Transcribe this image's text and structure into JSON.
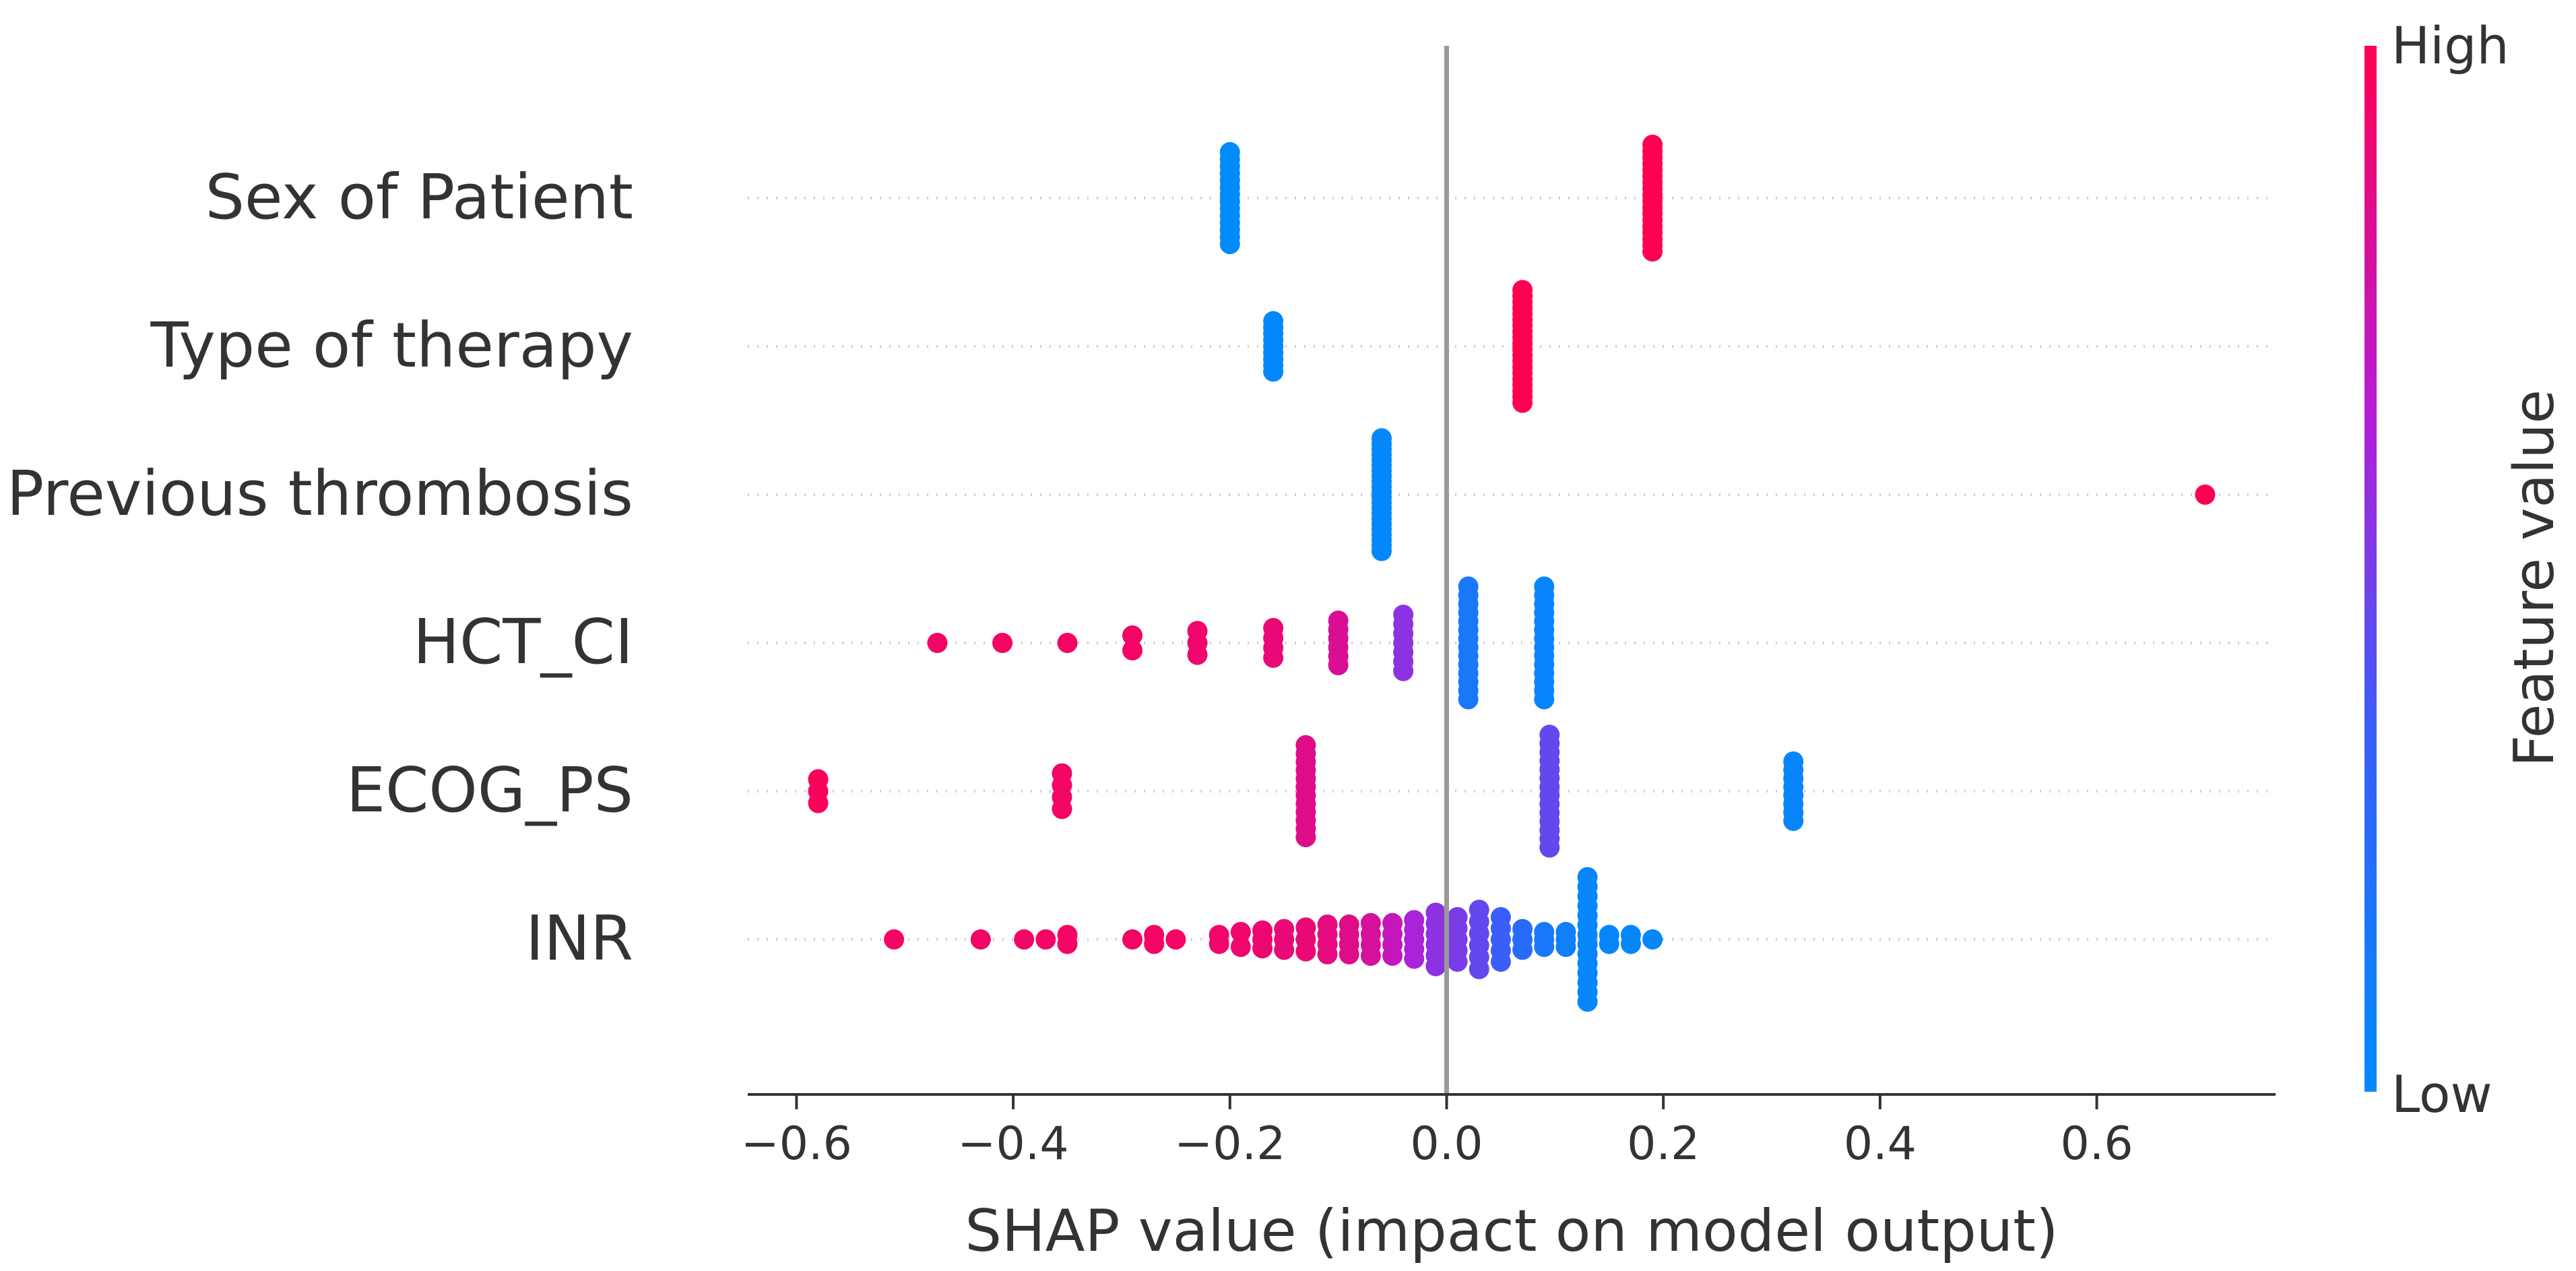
{
  "chart_data": {
    "type": "scatter",
    "subtype": "shap-beeswarm",
    "title": "",
    "xlabel": "SHAP value (impact on model output)",
    "ylabel": "",
    "xlim": [
      -0.645,
      0.765
    ],
    "xticks": [
      -0.6,
      -0.4,
      -0.2,
      0.0,
      0.2,
      0.4,
      0.6
    ],
    "xtick_labels": [
      "−0.6",
      "−0.4",
      "−0.2",
      "0.0",
      "0.2",
      "0.4",
      "0.6"
    ],
    "grid": false,
    "colorbar": {
      "label": "Feature value",
      "high_label": "High",
      "low_label": "Low",
      "high_color": "#ff0051",
      "low_color": "#008bfb"
    },
    "features": [
      {
        "name": "Sex of Patient",
        "groups": [
          {
            "x": -0.2,
            "t": 0.0,
            "n": 14,
            "spread": 0.62
          },
          {
            "x": 0.19,
            "t": 1.0,
            "n": 18,
            "spread": 0.72
          }
        ]
      },
      {
        "name": "Type of therapy",
        "groups": [
          {
            "x": -0.16,
            "t": 0.02,
            "n": 9,
            "spread": 0.34
          },
          {
            "x": 0.07,
            "t": 1.0,
            "n": 20,
            "spread": 0.76
          }
        ]
      },
      {
        "name": "Previous thrombosis",
        "groups": [
          {
            "x": -0.06,
            "t": 0.02,
            "n": 22,
            "spread": 0.76
          },
          {
            "x": 0.7,
            "t": 1.0,
            "n": 1,
            "spread": 0.0
          }
        ]
      },
      {
        "name": "HCT_CI",
        "groups": [
          {
            "x": -0.47,
            "t": 0.95,
            "n": 1,
            "spread": 0.0
          },
          {
            "x": -0.41,
            "t": 0.95,
            "n": 1,
            "spread": 0.0
          },
          {
            "x": -0.35,
            "t": 0.95,
            "n": 1,
            "spread": 0.0
          },
          {
            "x": -0.29,
            "t": 0.95,
            "n": 2,
            "spread": 0.1
          },
          {
            "x": -0.23,
            "t": 0.93,
            "n": 3,
            "spread": 0.16
          },
          {
            "x": -0.16,
            "t": 0.9,
            "n": 4,
            "spread": 0.2
          },
          {
            "x": -0.1,
            "t": 0.82,
            "n": 6,
            "spread": 0.3
          },
          {
            "x": -0.04,
            "t": 0.55,
            "n": 7,
            "spread": 0.38
          },
          {
            "x": 0.02,
            "t": 0.15,
            "n": 14,
            "spread": 0.76
          },
          {
            "x": 0.09,
            "t": 0.05,
            "n": 14,
            "spread": 0.76
          }
        ]
      },
      {
        "name": "ECOG_PS",
        "groups": [
          {
            "x": -0.58,
            "t": 0.97,
            "n": 3,
            "spread": 0.16
          },
          {
            "x": -0.355,
            "t": 0.95,
            "n": 4,
            "spread": 0.24
          },
          {
            "x": -0.13,
            "t": 0.85,
            "n": 12,
            "spread": 0.62
          },
          {
            "x": 0.095,
            "t": 0.45,
            "n": 14,
            "spread": 0.76
          },
          {
            "x": 0.32,
            "t": 0.05,
            "n": 8,
            "spread": 0.4
          }
        ]
      },
      {
        "name": "INR",
        "groups": [
          {
            "x": -0.51,
            "t": 0.95,
            "n": 1,
            "spread": 0.0
          },
          {
            "x": -0.43,
            "t": 0.95,
            "n": 1,
            "spread": 0.0
          },
          {
            "x": -0.39,
            "t": 0.95,
            "n": 1,
            "spread": 0.0
          },
          {
            "x": -0.37,
            "t": 0.95,
            "n": 1,
            "spread": 0.0
          },
          {
            "x": -0.35,
            "t": 0.95,
            "n": 2,
            "spread": 0.06
          },
          {
            "x": -0.29,
            "t": 0.95,
            "n": 1,
            "spread": 0.0
          },
          {
            "x": -0.27,
            "t": 0.95,
            "n": 2,
            "spread": 0.06
          },
          {
            "x": -0.25,
            "t": 0.95,
            "n": 1,
            "spread": 0.0
          },
          {
            "x": -0.21,
            "t": 0.93,
            "n": 2,
            "spread": 0.06
          },
          {
            "x": -0.19,
            "t": 0.93,
            "n": 2,
            "spread": 0.1
          },
          {
            "x": -0.17,
            "t": 0.92,
            "n": 3,
            "spread": 0.12
          },
          {
            "x": -0.15,
            "t": 0.9,
            "n": 3,
            "spread": 0.14
          },
          {
            "x": -0.13,
            "t": 0.9,
            "n": 3,
            "spread": 0.16
          },
          {
            "x": -0.11,
            "t": 0.88,
            "n": 4,
            "spread": 0.2
          },
          {
            "x": -0.09,
            "t": 0.85,
            "n": 4,
            "spread": 0.2
          },
          {
            "x": -0.07,
            "t": 0.8,
            "n": 4,
            "spread": 0.22
          },
          {
            "x": -0.05,
            "t": 0.72,
            "n": 4,
            "spread": 0.22
          },
          {
            "x": -0.03,
            "t": 0.62,
            "n": 5,
            "spread": 0.26
          },
          {
            "x": -0.01,
            "t": 0.55,
            "n": 6,
            "spread": 0.36
          },
          {
            "x": 0.01,
            "t": 0.5,
            "n": 5,
            "spread": 0.3
          },
          {
            "x": 0.03,
            "t": 0.45,
            "n": 6,
            "spread": 0.4
          },
          {
            "x": 0.05,
            "t": 0.35,
            "n": 5,
            "spread": 0.3
          },
          {
            "x": 0.07,
            "t": 0.25,
            "n": 3,
            "spread": 0.14
          },
          {
            "x": 0.09,
            "t": 0.15,
            "n": 3,
            "spread": 0.1
          },
          {
            "x": 0.11,
            "t": 0.1,
            "n": 3,
            "spread": 0.1
          },
          {
            "x": 0.13,
            "t": 0.04,
            "n": 14,
            "spread": 0.84
          },
          {
            "x": 0.15,
            "t": 0.04,
            "n": 2,
            "spread": 0.06
          },
          {
            "x": 0.17,
            "t": 0.03,
            "n": 2,
            "spread": 0.06
          },
          {
            "x": 0.19,
            "t": 0.02,
            "n": 1,
            "spread": 0.0
          }
        ]
      }
    ]
  }
}
